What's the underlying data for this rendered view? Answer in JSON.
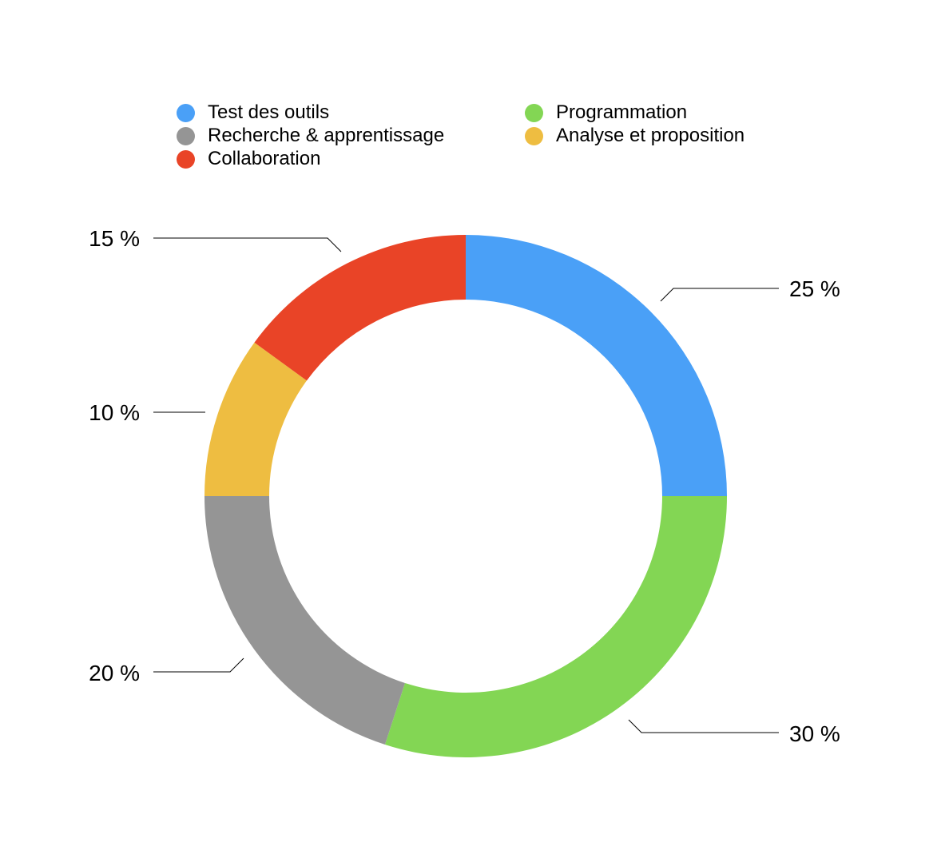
{
  "chart_data": {
    "type": "pie",
    "variant": "donut",
    "legend_position": "top",
    "series": [
      {
        "name": "Test des outils",
        "value": 25,
        "label": "25 %",
        "color": "#4AA0F7"
      },
      {
        "name": "Programmation",
        "value": 30,
        "label": "30 %",
        "color": "#83D654"
      },
      {
        "name": "Recherche & apprentissage",
        "value": 20,
        "label": "20 %",
        "color": "#959595"
      },
      {
        "name": "Analyse et proposition",
        "value": 10,
        "label": "10 %",
        "color": "#EEBD41"
      },
      {
        "name": "Collaboration",
        "value": 15,
        "label": "15 %",
        "color": "#E94427"
      }
    ]
  }
}
